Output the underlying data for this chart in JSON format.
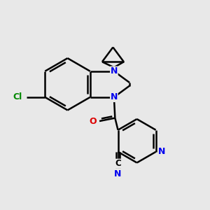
{
  "background_color": "#e8e8e8",
  "bond_color": "#000000",
  "bond_width": 1.8,
  "N_color": "#0000ee",
  "O_color": "#dd0000",
  "Cl_color": "#008800",
  "C_label_color": "#000000",
  "figsize": [
    3.0,
    3.0
  ],
  "dpi": 100,
  "xlim": [
    0,
    10
  ],
  "ylim": [
    0,
    10
  ]
}
